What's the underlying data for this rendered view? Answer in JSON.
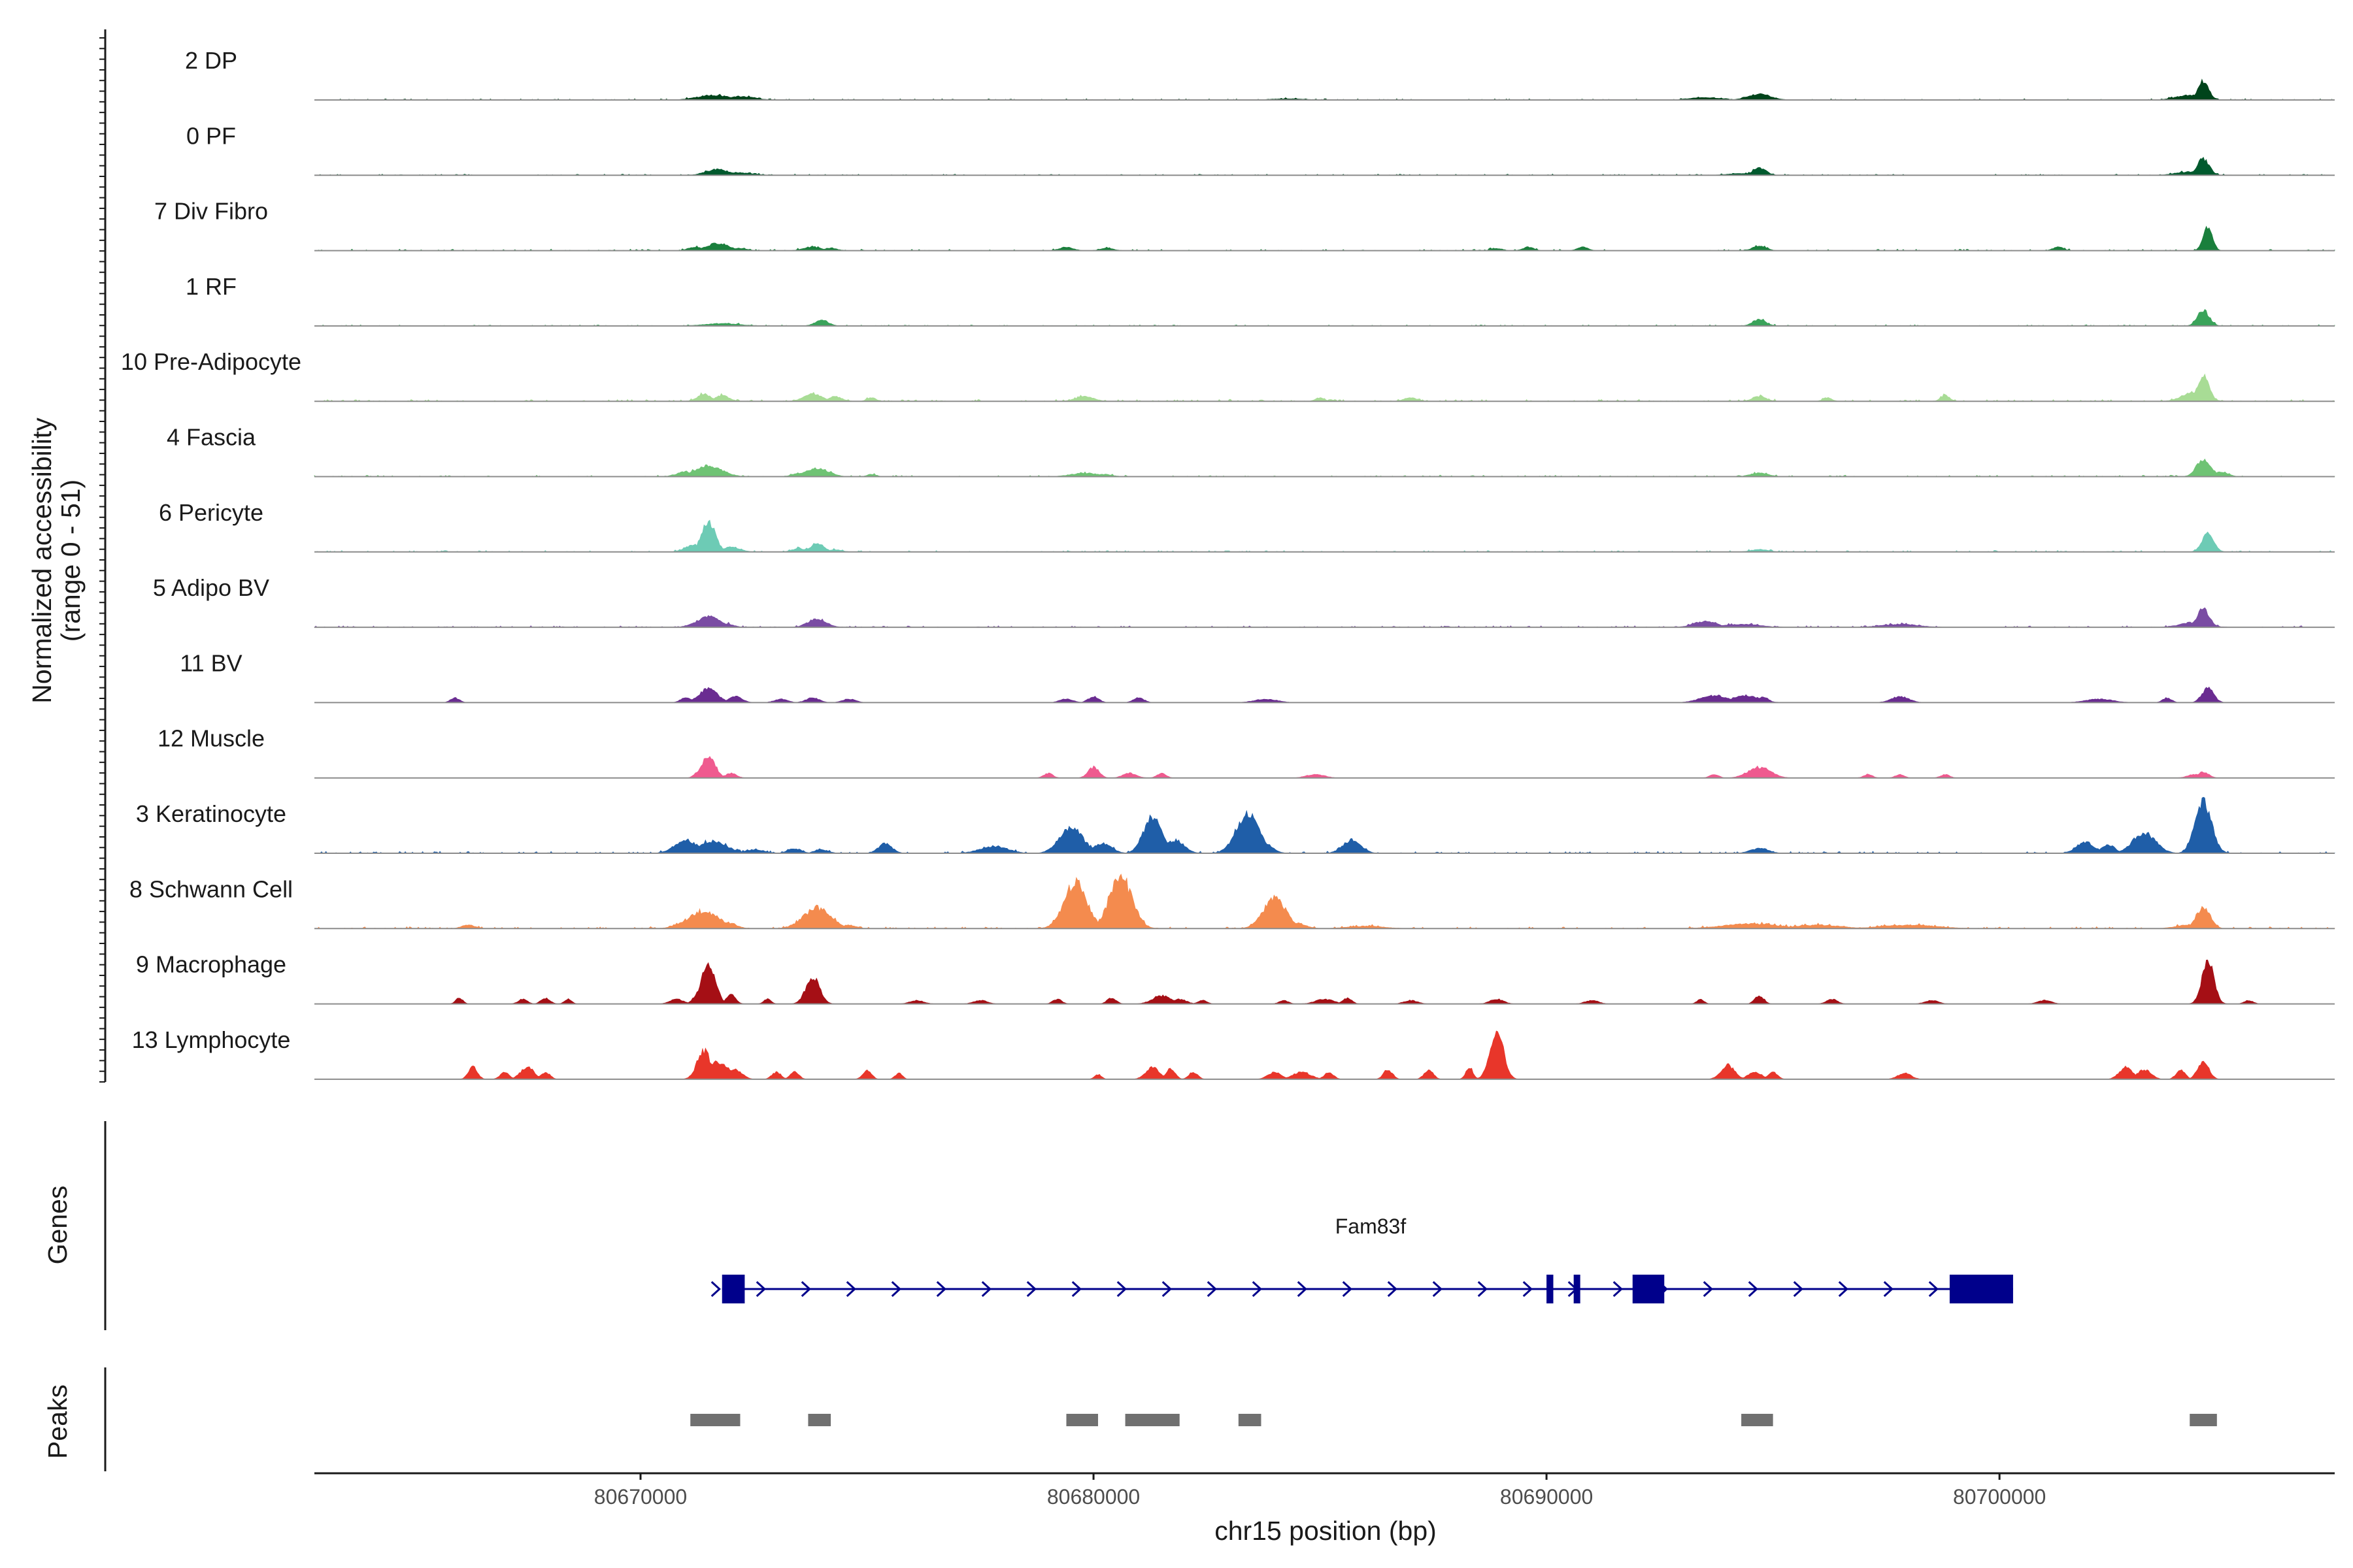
{
  "chart_data": {
    "type": "area",
    "title": "",
    "ylabel_line1": "Normalized accessibility",
    "ylabel_line2": "(range 0 - 51)",
    "yrange": [
      0,
      51
    ],
    "xlabel": "chr15 position (bp)",
    "xlim": [
      80662800,
      80707400
    ],
    "xticks": [
      80670000,
      80680000,
      80690000,
      80700000
    ],
    "xtick_labels": [
      "80670000",
      "80680000",
      "80690000",
      "80700000"
    ],
    "tracks": [
      {
        "name": "2 DP",
        "color": "#00441b",
        "peaks": [
          [
            80671600,
            350,
            4
          ],
          [
            80672200,
            300,
            3
          ],
          [
            80684300,
            400,
            1
          ],
          [
            80693500,
            350,
            2
          ],
          [
            80694700,
            250,
            5
          ],
          [
            80704500,
            120,
            16
          ],
          [
            80704200,
            300,
            4
          ]
        ],
        "noise": 1
      },
      {
        "name": "0 PF",
        "color": "#005a2e",
        "peaks": [
          [
            80671700,
            250,
            5
          ],
          [
            80672200,
            300,
            2
          ],
          [
            80694700,
            150,
            6
          ],
          [
            80694300,
            300,
            1.5
          ],
          [
            80704500,
            130,
            14
          ],
          [
            80704200,
            300,
            3
          ]
        ],
        "noise": 1
      },
      {
        "name": "7 Div Fibro",
        "color": "#1a7f3c",
        "peaks": [
          [
            80671700,
            250,
            6
          ],
          [
            80671200,
            150,
            3
          ],
          [
            80672200,
            150,
            2
          ],
          [
            80673800,
            200,
            3
          ],
          [
            80674200,
            150,
            2
          ],
          [
            80679400,
            150,
            3
          ],
          [
            80680300,
            150,
            2
          ],
          [
            80688900,
            120,
            2
          ],
          [
            80689600,
            120,
            3
          ],
          [
            80690800,
            120,
            3
          ],
          [
            80694700,
            150,
            4
          ],
          [
            80701300,
            120,
            3
          ],
          [
            80704600,
            100,
            20
          ]
        ],
        "noise": 1.2
      },
      {
        "name": "1 RF",
        "color": "#3aa35a",
        "peaks": [
          [
            80671800,
            400,
            2
          ],
          [
            80674000,
            150,
            5
          ],
          [
            80694700,
            150,
            5
          ],
          [
            80704500,
            130,
            13
          ]
        ],
        "noise": 1
      },
      {
        "name": "10 Pre-Adipocyte",
        "color": "#a8dc95",
        "peaks": [
          [
            80671400,
            150,
            6
          ],
          [
            80671800,
            150,
            5
          ],
          [
            80673800,
            200,
            6
          ],
          [
            80674300,
            150,
            4
          ],
          [
            80675100,
            100,
            3
          ],
          [
            80679800,
            200,
            4
          ],
          [
            80685000,
            100,
            3
          ],
          [
            80687000,
            150,
            3
          ],
          [
            80694700,
            150,
            4
          ],
          [
            80696200,
            100,
            3
          ],
          [
            80698800,
            100,
            5
          ],
          [
            80704500,
            130,
            20
          ],
          [
            80704300,
            250,
            8
          ]
        ],
        "noise": 1.5
      },
      {
        "name": "4 Fascia",
        "color": "#6fc374",
        "peaks": [
          [
            80671500,
            300,
            9
          ],
          [
            80671000,
            200,
            4
          ],
          [
            80673900,
            250,
            7
          ],
          [
            80673500,
            150,
            3
          ],
          [
            80675100,
            100,
            2
          ],
          [
            80679800,
            300,
            3
          ],
          [
            80680200,
            200,
            2
          ],
          [
            80694700,
            200,
            3
          ],
          [
            80704500,
            150,
            15
          ],
          [
            80704900,
            150,
            4
          ]
        ],
        "noise": 1.2
      },
      {
        "name": "6 Pericyte",
        "color": "#6dcbb5",
        "peaks": [
          [
            80671500,
            150,
            26
          ],
          [
            80671200,
            200,
            6
          ],
          [
            80672000,
            200,
            4
          ],
          [
            80673900,
            150,
            7
          ],
          [
            80673500,
            150,
            3
          ],
          [
            80674300,
            150,
            2
          ],
          [
            80694700,
            200,
            2
          ],
          [
            80704600,
            130,
            16
          ]
        ],
        "noise": 1.2
      },
      {
        "name": "5 Adipo BV",
        "color": "#7a4ca3",
        "peaks": [
          [
            80671500,
            250,
            9
          ],
          [
            80671900,
            150,
            3
          ],
          [
            80673900,
            200,
            7
          ],
          [
            80693500,
            250,
            5
          ],
          [
            80694300,
            400,
            2.5
          ],
          [
            80697800,
            400,
            2.5
          ],
          [
            80704500,
            130,
            16
          ],
          [
            80704300,
            300,
            4
          ]
        ],
        "noise": 1.2
      },
      {
        "name": "11 BV",
        "color": "#6a2c91",
        "peaks": [
          [
            80665900,
            100,
            4
          ],
          [
            80671000,
            120,
            4
          ],
          [
            80671500,
            200,
            12
          ],
          [
            80672100,
            150,
            5
          ],
          [
            80673100,
            150,
            3
          ],
          [
            80673800,
            150,
            4
          ],
          [
            80674600,
            150,
            3
          ],
          [
            80679400,
            150,
            3
          ],
          [
            80680000,
            120,
            5
          ],
          [
            80681000,
            120,
            4
          ],
          [
            80683800,
            250,
            3
          ],
          [
            80693700,
            300,
            6
          ],
          [
            80694400,
            300,
            6
          ],
          [
            80694800,
            100,
            5
          ],
          [
            80697800,
            200,
            5
          ],
          [
            80702200,
            300,
            3
          ],
          [
            80703700,
            100,
            4
          ],
          [
            80704600,
            130,
            12
          ]
        ],
        "noise": 0
      },
      {
        "name": "12 Muscle",
        "color": "#ef5a8f",
        "peaks": [
          [
            80671500,
            150,
            18
          ],
          [
            80671300,
            100,
            6
          ],
          [
            80672000,
            120,
            4
          ],
          [
            80679000,
            100,
            4
          ],
          [
            80680000,
            120,
            9
          ],
          [
            80680800,
            150,
            4
          ],
          [
            80681500,
            100,
            4
          ],
          [
            80684900,
            200,
            3
          ],
          [
            80693700,
            100,
            3
          ],
          [
            80694700,
            250,
            9
          ],
          [
            80697100,
            100,
            3
          ],
          [
            80697800,
            100,
            3
          ],
          [
            80698800,
            100,
            3
          ],
          [
            80704500,
            120,
            5
          ],
          [
            80704300,
            150,
            3
          ]
        ],
        "noise": 0
      },
      {
        "name": "3 Keratinocyte",
        "color": "#1f5ea8",
        "peaks": [
          [
            80671000,
            250,
            11
          ],
          [
            80671600,
            300,
            10
          ],
          [
            80672500,
            200,
            3
          ],
          [
            80673400,
            150,
            4
          ],
          [
            80674000,
            150,
            3
          ],
          [
            80675400,
            150,
            8
          ],
          [
            80677800,
            300,
            6
          ],
          [
            80679500,
            250,
            22
          ],
          [
            80680200,
            200,
            8
          ],
          [
            80681300,
            200,
            30
          ],
          [
            80681800,
            200,
            11
          ],
          [
            80683400,
            250,
            33
          ],
          [
            80683700,
            200,
            10
          ],
          [
            80685700,
            200,
            11
          ],
          [
            80694700,
            200,
            4
          ],
          [
            80701900,
            200,
            9
          ],
          [
            80702400,
            150,
            7
          ],
          [
            80703200,
            250,
            17
          ],
          [
            80704500,
            180,
            43
          ]
        ],
        "noise": 1.5
      },
      {
        "name": "8 Schwann Cell",
        "color": "#f48b4e",
        "peaks": [
          [
            80666200,
            150,
            3
          ],
          [
            80671400,
            350,
            14
          ],
          [
            80671900,
            200,
            5
          ],
          [
            80673900,
            300,
            17
          ],
          [
            80674600,
            150,
            3
          ],
          [
            80679600,
            250,
            38
          ],
          [
            80680600,
            250,
            43
          ],
          [
            80684000,
            250,
            25
          ],
          [
            80684500,
            200,
            4
          ],
          [
            80686000,
            400,
            2
          ],
          [
            80694500,
            600,
            4
          ],
          [
            80696000,
            500,
            3
          ],
          [
            80698000,
            600,
            3
          ],
          [
            80704500,
            150,
            18
          ],
          [
            80704200,
            300,
            3
          ]
        ],
        "noise": 1.5
      },
      {
        "name": "9 Macrophage",
        "color": "#a50f15",
        "peaks": [
          [
            80666000,
            80,
            5
          ],
          [
            80667400,
            100,
            4
          ],
          [
            80667900,
            100,
            5
          ],
          [
            80668400,
            80,
            4
          ],
          [
            80670800,
            150,
            4
          ],
          [
            80671500,
            150,
            35
          ],
          [
            80671300,
            120,
            10
          ],
          [
            80672000,
            100,
            8
          ],
          [
            80672800,
            80,
            4
          ],
          [
            80673800,
            150,
            23
          ],
          [
            80676100,
            150,
            3
          ],
          [
            80677500,
            150,
            3
          ],
          [
            80679200,
            100,
            4
          ],
          [
            80680400,
            100,
            5
          ],
          [
            80681500,
            200,
            7
          ],
          [
            80681900,
            150,
            4
          ],
          [
            80682400,
            100,
            3
          ],
          [
            80684200,
            100,
            3
          ],
          [
            80685100,
            200,
            4
          ],
          [
            80685600,
            100,
            5
          ],
          [
            80687000,
            150,
            3
          ],
          [
            80688900,
            150,
            4
          ],
          [
            80691000,
            150,
            3
          ],
          [
            80693400,
            80,
            4
          ],
          [
            80694700,
            100,
            7
          ],
          [
            80696300,
            120,
            4
          ],
          [
            80698500,
            150,
            3
          ],
          [
            80701000,
            150,
            3
          ],
          [
            80704600,
            130,
            37
          ],
          [
            80705500,
            100,
            3
          ]
        ],
        "noise": 0
      },
      {
        "name": "13 Lymphocyte",
        "color": "#e8362a",
        "peaks": [
          [
            80666300,
            100,
            10
          ],
          [
            80667000,
            100,
            6
          ],
          [
            80667500,
            150,
            10
          ],
          [
            80667900,
            100,
            6
          ],
          [
            80671400,
            150,
            24
          ],
          [
            80671700,
            250,
            14
          ],
          [
            80672100,
            150,
            8
          ],
          [
            80673000,
            100,
            6
          ],
          [
            80673400,
            100,
            6
          ],
          [
            80675000,
            100,
            7
          ],
          [
            80675700,
            80,
            5
          ],
          [
            80680100,
            80,
            4
          ],
          [
            80681300,
            150,
            10
          ],
          [
            80681700,
            100,
            9
          ],
          [
            80682200,
            100,
            6
          ],
          [
            80684000,
            150,
            6
          ],
          [
            80684600,
            200,
            6
          ],
          [
            80685200,
            100,
            6
          ],
          [
            80686500,
            100,
            8
          ],
          [
            80687400,
            100,
            8
          ],
          [
            80688300,
            80,
            10
          ],
          [
            80688900,
            150,
            40
          ],
          [
            80694000,
            150,
            12
          ],
          [
            80694600,
            150,
            6
          ],
          [
            80695000,
            100,
            6
          ],
          [
            80697900,
            150,
            5
          ],
          [
            80702800,
            150,
            10
          ],
          [
            80703200,
            150,
            8
          ],
          [
            80704000,
            100,
            8
          ],
          [
            80704500,
            120,
            16
          ]
        ],
        "noise": 0
      }
    ],
    "genes": {
      "title": "Genes",
      "name": "Fam83f",
      "color": "#00008b",
      "start": 80671800,
      "end": 80700300,
      "exons": [
        [
          80671800,
          80672300
        ],
        [
          80690000,
          80690150
        ],
        [
          80690600,
          80690700
        ],
        [
          80691900,
          80692600
        ],
        [
          80698900,
          80700300
        ]
      ],
      "strand": "+"
    },
    "peaks_track": {
      "title": "Peaks",
      "color": "#707070",
      "regions": [
        [
          80671100,
          80672200
        ],
        [
          80673700,
          80674200
        ],
        [
          80679400,
          80680100
        ],
        [
          80680700,
          80681900
        ],
        [
          80683200,
          80683700
        ],
        [
          80694300,
          80695000
        ],
        [
          80704200,
          80704800
        ]
      ]
    }
  }
}
